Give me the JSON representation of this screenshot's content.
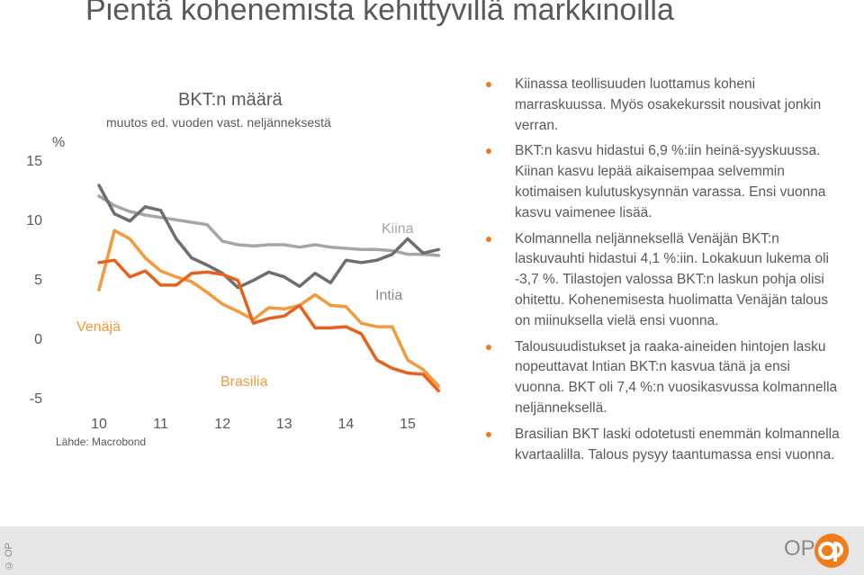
{
  "page": {
    "title": "Pientä kohenemista kehittyvillä markkinoilla",
    "copyright": "© OP",
    "logo_text": "OP",
    "accent_color": "#f07c1a"
  },
  "bullets": [
    "Kiinassa teollisuuden luottamus koheni marraskuussa. Myös osakekurssit nousivat jonkin verran.",
    "BKT:n kasvu hidastui 6,9 %:iin heinä-syyskuussa. Kiinan kasvu lepää aikaisempaa selvemmin kotimaisen kulutuskysynnän varassa. Ensi vuonna kasvu vaimenee lisää.",
    "Kolmannella neljänneksellä Venäjän BKT:n laskuvauhti hidastui 4,1 %:iin. Lokakuun lukema oli -3,7 %. Tilastojen valossa BKT:n laskun pohja olisi ohitettu. Kohenemisesta huolimatta Venäjän talous on miinuksella vielä ensi vuonna.",
    "Talousuudistukset ja raaka-aineiden hintojen lasku nopeuttavat Intian BKT:n kasvua tänä ja ensi vuonna. BKT oli 7,4 %:n vuosikasvussa kolmannella neljänneksellä.",
    "Brasilian BKT laski odotetusti enemmän kolmannella kvartaalilla. Talous pysyy taantumassa ensi vuonna."
  ],
  "chart_data": {
    "type": "line",
    "title": "BKT:n määrä",
    "subtitle": "muutos ed. vuoden vast. neljänneksestä",
    "ylabel": "%",
    "source": "Lähde: Macrobond",
    "ylim": [
      -7,
      16
    ],
    "xlim": [
      2010,
      2015.75
    ],
    "x_ticks": [
      "10",
      "11",
      "12",
      "13",
      "14",
      "15"
    ],
    "y_ticks": [
      "-5",
      "0",
      "5",
      "10",
      "15"
    ],
    "grid": false,
    "x": [
      2010.0,
      2010.25,
      2010.5,
      2010.75,
      2011.0,
      2011.25,
      2011.5,
      2011.75,
      2012.0,
      2012.25,
      2012.5,
      2012.75,
      2013.0,
      2013.25,
      2013.5,
      2013.75,
      2014.0,
      2014.25,
      2014.5,
      2014.75,
      2015.0,
      2015.25,
      2015.5
    ],
    "series": [
      {
        "name": "Kiina",
        "color": "#a6a6a6",
        "values": [
          11.9,
          11.1,
          10.6,
          10.3,
          10.1,
          9.9,
          9.7,
          9.5,
          8.1,
          7.8,
          7.7,
          7.8,
          7.8,
          7.6,
          7.8,
          7.6,
          7.5,
          7.4,
          7.4,
          7.3,
          7.0,
          7.0,
          6.9
        ]
      },
      {
        "name": "Intia",
        "color": "#6e6e6e",
        "values": [
          12.8,
          10.4,
          9.8,
          11.0,
          10.7,
          8.3,
          6.7,
          6.1,
          5.4,
          4.2,
          4.8,
          5.5,
          5.1,
          4.3,
          5.4,
          4.6,
          6.5,
          6.3,
          6.5,
          7.0,
          8.3,
          7.1,
          7.4
        ]
      },
      {
        "name": "Venäjä",
        "color": "#f39a3e",
        "values": [
          4.0,
          9.0,
          8.3,
          6.7,
          5.6,
          5.1,
          4.7,
          3.8,
          2.8,
          2.2,
          1.5,
          2.5,
          2.4,
          2.7,
          3.6,
          2.7,
          2.6,
          1.2,
          0.9,
          0.9,
          -1.9,
          -2.7,
          -4.1
        ]
      },
      {
        "name": "Brasilia",
        "color": "#e8601c",
        "values": [
          6.3,
          6.5,
          5.1,
          5.6,
          4.4,
          4.4,
          5.4,
          5.5,
          5.3,
          4.8,
          1.2,
          1.6,
          1.8,
          2.7,
          0.8,
          0.8,
          0.9,
          0.3,
          -1.9,
          -2.6,
          -3.0,
          -3.1,
          -4.5
        ]
      }
    ],
    "annotations": [
      "Kiina",
      "Intia",
      "Venäjä",
      "Brasilia"
    ]
  }
}
